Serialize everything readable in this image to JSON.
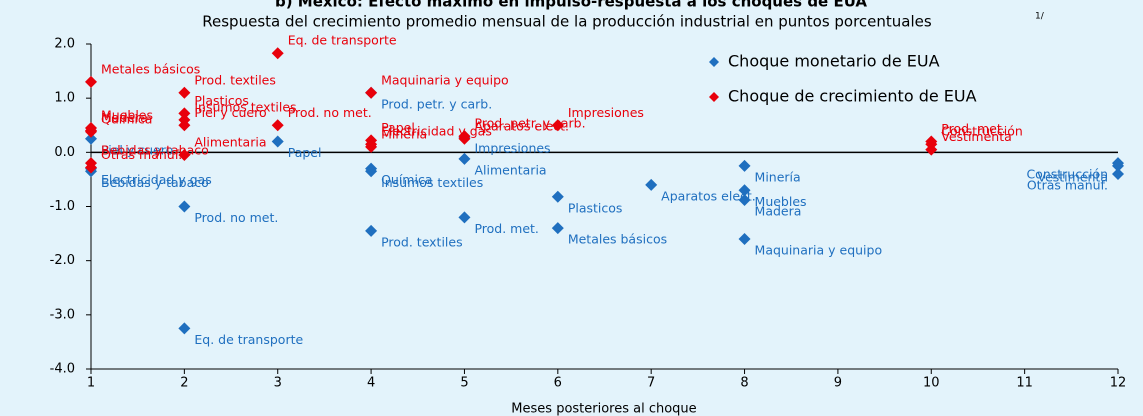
{
  "chart_data": {
    "type": "scatter",
    "title": "b) México: Efecto máximo en impulso-respuesta a los choques de EUA",
    "subtitle": "Respuesta del crecimiento promedio mensual de la producción industrial en puntos porcentuales",
    "subtitle_note": "1/",
    "x_label": "Meses posteriores al choque",
    "xlim": [
      1,
      12
    ],
    "xticks": [
      1,
      2,
      3,
      4,
      5,
      6,
      7,
      8,
      9,
      10,
      11,
      12
    ],
    "ylim": [
      -4,
      2
    ],
    "yticks": [
      {
        "value": -4,
        "label": "-4.0"
      },
      {
        "value": -3,
        "label": "-3.0"
      },
      {
        "value": -2,
        "label": "-2.0"
      },
      {
        "value": -1,
        "label": "-1.0"
      },
      {
        "value": 0,
        "label": "0.0"
      },
      {
        "value": 1,
        "label": "1.0"
      },
      {
        "value": 2,
        "label": "2.0"
      }
    ],
    "legend": "upper right",
    "series": [
      {
        "name": "Choque monetario de EUA",
        "color": "#1f6fbf",
        "x": [
          1,
          1,
          1,
          2,
          2,
          3,
          4,
          4,
          4,
          4,
          5,
          5,
          5,
          6,
          6,
          7,
          8,
          8,
          8,
          8,
          12,
          12,
          12
        ],
        "values": [
          0.25,
          -0.35,
          -0.3,
          -1.0,
          -3.25,
          0.2,
          1.1,
          -0.3,
          -0.35,
          -1.45,
          0.28,
          -0.12,
          -1.2,
          -0.82,
          -1.4,
          -0.6,
          -0.25,
          -0.7,
          -0.88,
          -1.6,
          -0.2,
          -0.25,
          -0.4
        ],
        "labels": [
          "Piel y cuero",
          "Bebidas y tabaco",
          "Electricidad  y gas",
          "Prod. no met.",
          "Eq. de transporte",
          "Papel",
          "Prod. petr.  y carb.",
          "Química",
          "Insumos textiles",
          "Prod. textiles",
          "Impresiones",
          "Alimentaria",
          "Prod. met.",
          "Plasticos",
          "Metales  básicos",
          "Aparatos elect.",
          "Minería",
          "Muebles",
          "Madera",
          "Maquinaria  y equipo",
          "Construcción",
          "Vestimenta",
          "Otras manuf."
        ]
      },
      {
        "name": "Choque de crecimiento de EUA",
        "color": "#e8000b",
        "x": [
          1,
          1,
          1,
          1,
          1,
          1,
          2,
          2,
          2,
          2,
          2,
          3,
          3,
          4,
          4,
          4,
          4,
          5,
          5,
          6,
          10,
          10,
          10
        ],
        "values": [
          1.3,
          0.45,
          0.38,
          0.4,
          -0.2,
          -0.28,
          1.1,
          0.72,
          0.6,
          0.5,
          -0.05,
          1.83,
          0.5,
          1.1,
          0.22,
          0.15,
          0.1,
          0.3,
          0.25,
          0.5,
          0.2,
          0.15,
          0.05
        ],
        "labels": [
          "Metales  básicos",
          "Muebles",
          "Química",
          "Madera",
          "Bebidas y tabaco",
          "Otras manuf.",
          "Prod. textiles",
          "Plasticos",
          "Insumos textiles",
          "Piel y cuero",
          "Alimentaria",
          "Eq. de transporte",
          "Prod. no met.",
          "Maquinaria  y equipo",
          "Papel",
          "Electricidad  y gas",
          "Minería",
          "Prod. petr.  y carb.",
          "Aparatos elect.",
          "Impresiones",
          "Prod. met.",
          "Construcción",
          "Vestimenta"
        ]
      }
    ]
  }
}
